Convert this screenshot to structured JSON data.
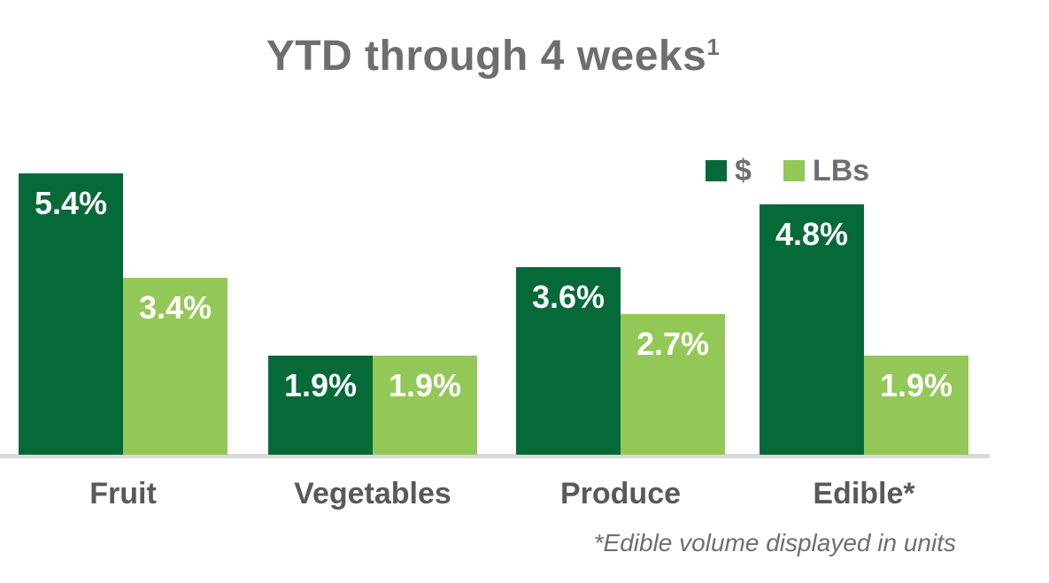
{
  "chart_data": {
    "type": "bar",
    "title": "YTD through 4 weeks",
    "title_superscript": "1",
    "categories": [
      "Fruit",
      "Vegetables",
      "Produce",
      "Edible*"
    ],
    "series": [
      {
        "name": "$",
        "color": "#056A38",
        "values": [
          5.4,
          1.9,
          3.6,
          4.8
        ],
        "value_labels": [
          "5.4%",
          "1.9%",
          "3.6%",
          "4.8%"
        ]
      },
      {
        "name": "LBs",
        "color": "#93C858",
        "values": [
          3.4,
          1.9,
          2.7,
          1.9
        ],
        "value_labels": [
          "3.4%",
          "1.9%",
          "2.7%",
          "1.9%"
        ]
      }
    ],
    "xlabel": "",
    "ylabel": "",
    "ylim": [
      0,
      5.4
    ],
    "grid": false,
    "axes_hidden": true,
    "legend_position": "top-right",
    "value_label_position": "inside-top",
    "value_label_color": "#FFFFFF",
    "category_label_color": "#58595B",
    "title_color": "#6D6E71",
    "baseline_color": "#D8D8D8",
    "footnote": "*Edible volume displayed in units"
  }
}
